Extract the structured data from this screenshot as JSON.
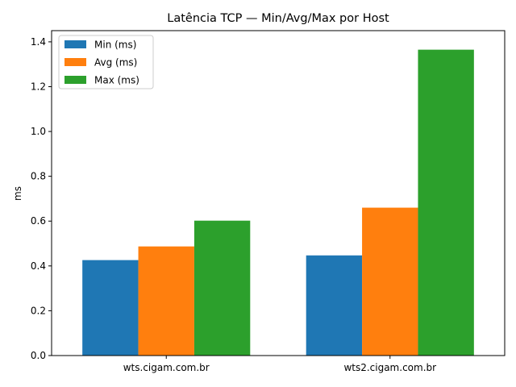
{
  "chart_data": {
    "type": "bar",
    "title": "Latência TCP — Min/Avg/Max por Host",
    "xlabel": "",
    "ylabel": "ms",
    "ylim": [
      0,
      1.45
    ],
    "yticks": [
      "0.0",
      "0.2",
      "0.4",
      "0.6",
      "0.8",
      "1.0",
      "1.2",
      "1.4"
    ],
    "categories": [
      "wts.cigam.com.br",
      "wts2.cigam.com.br"
    ],
    "series": [
      {
        "name": "Min (ms)",
        "values": [
          0.426,
          0.447
        ],
        "color": "#1f77b4"
      },
      {
        "name": "Avg (ms)",
        "values": [
          0.487,
          0.66
        ],
        "color": "#ff7f0e"
      },
      {
        "name": "Max (ms)",
        "values": [
          0.602,
          1.365
        ],
        "color": "#2ca02c"
      }
    ],
    "grid": false,
    "legend_position": "top-left"
  }
}
